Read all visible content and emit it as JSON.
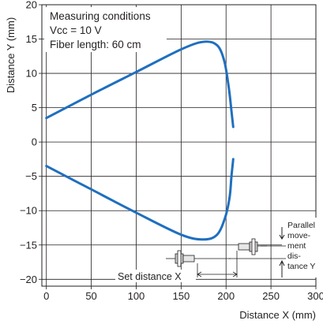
{
  "chart_data": {
    "type": "line",
    "title": "",
    "xlabel": "Distance X (mm)",
    "ylabel": "Distance Y (mm)",
    "xlim": [
      -5,
      300
    ],
    "ylim": [
      -21,
      20
    ],
    "x_ticks": [
      0,
      50,
      100,
      150,
      200,
      250,
      300
    ],
    "x_tick_labels": [
      "0",
      "50",
      "100",
      "150",
      "200",
      "250",
      "300"
    ],
    "y_ticks": [
      20,
      15,
      10,
      5,
      0,
      -5,
      -10,
      -15,
      -20
    ],
    "y_tick_labels": [
      "20",
      "15",
      "10",
      "5",
      "0",
      "−5",
      "−10",
      "−15",
      "−20"
    ],
    "grid": true,
    "line_color": "#1f6fbf",
    "series": [
      {
        "points": [
          [
            0,
            3.5
          ],
          [
            50,
            6.9
          ],
          [
            100,
            10.2
          ],
          [
            150,
            13.5
          ],
          [
            175,
            14.6
          ],
          [
            190,
            14.1
          ],
          [
            198,
            11.8
          ],
          [
            203,
            8.0
          ],
          [
            206,
            4.5
          ],
          [
            208,
            2.2
          ]
        ]
      },
      {
        "points": [
          [
            0,
            -3.5
          ],
          [
            50,
            -6.9
          ],
          [
            100,
            -10.3
          ],
          [
            150,
            -13.5
          ],
          [
            175,
            -14.2
          ],
          [
            190,
            -13.5
          ],
          [
            199,
            -11.0
          ],
          [
            204,
            -8.0
          ],
          [
            206,
            -5.0
          ],
          [
            208,
            -2.5
          ]
        ]
      }
    ],
    "annotations": {
      "conditions": [
        "Measuring conditions",
        "Vcc = 10 V",
        "Fiber length: 60 cm"
      ],
      "set_distance": "Set distance X",
      "parallel": [
        "Parallel",
        "move-",
        "ment",
        "dis-",
        "tance Y"
      ]
    }
  }
}
